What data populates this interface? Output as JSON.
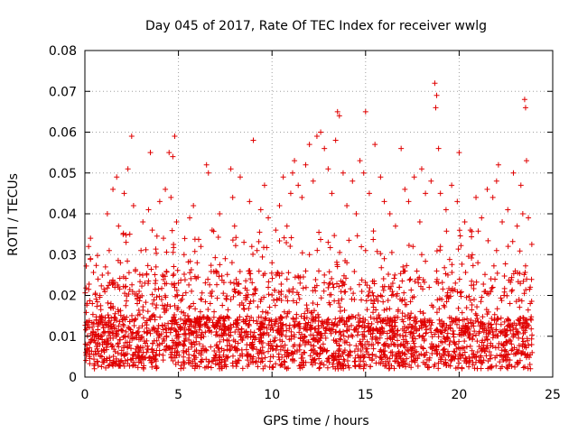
{
  "chart_data": {
    "type": "scatter",
    "title": "Day 045 of 2017, Rate Of TEC Index for receiver wwlg",
    "xlabel": "GPS time / hours",
    "ylabel": "ROTI / TECUs",
    "xlim": [
      0,
      25
    ],
    "ylim": [
      0,
      0.08
    ],
    "xticks": [
      0,
      5,
      10,
      15,
      20,
      25
    ],
    "xtick_labels": [
      "0",
      "5",
      "10",
      "15",
      "20",
      "25"
    ],
    "yticks": [
      0,
      0.01,
      0.02,
      0.03,
      0.04,
      0.05,
      0.06,
      0.07,
      0.08
    ],
    "ytick_labels": [
      "0",
      "0.01",
      "0.02",
      "0.03",
      "0.04",
      "0.05",
      "0.06",
      "0.07",
      "0.08"
    ],
    "grid": true,
    "marker": "+",
    "color": "#e00000",
    "series": [
      {
        "name": "ROTI",
        "points": [
          [
            0.1,
            0.012
          ],
          [
            0.2,
            0.032
          ],
          [
            0.3,
            0.029
          ],
          [
            0.4,
            0.018
          ],
          [
            0.5,
            0.009
          ],
          [
            0.7,
            0.024
          ],
          [
            0.9,
            0.015
          ],
          [
            1.0,
            0.011
          ],
          [
            1.1,
            0.027
          ],
          [
            1.2,
            0.04
          ],
          [
            1.3,
            0.031
          ],
          [
            1.5,
            0.046
          ],
          [
            1.6,
            0.022
          ],
          [
            1.7,
            0.049
          ],
          [
            1.8,
            0.037
          ],
          [
            1.9,
            0.028
          ],
          [
            2.0,
            0.014
          ],
          [
            2.1,
            0.045
          ],
          [
            2.2,
            0.033
          ],
          [
            2.3,
            0.051
          ],
          [
            2.4,
            0.035
          ],
          [
            2.5,
            0.059
          ],
          [
            2.6,
            0.042
          ],
          [
            2.7,
            0.026
          ],
          [
            2.8,
            0.018
          ],
          [
            3.0,
            0.031
          ],
          [
            3.1,
            0.038
          ],
          [
            3.2,
            0.023
          ],
          [
            3.4,
            0.041
          ],
          [
            3.5,
            0.055
          ],
          [
            3.6,
            0.036
          ],
          [
            3.8,
            0.027
          ],
          [
            4.0,
            0.043
          ],
          [
            4.2,
            0.034
          ],
          [
            4.3,
            0.046
          ],
          [
            4.5,
            0.055
          ],
          [
            4.6,
            0.044
          ],
          [
            4.7,
            0.054
          ],
          [
            4.8,
            0.059
          ],
          [
            4.9,
            0.038
          ],
          [
            5.0,
            0.023
          ],
          [
            5.3,
            0.03
          ],
          [
            5.6,
            0.039
          ],
          [
            5.8,
            0.042
          ],
          [
            6.0,
            0.028
          ],
          [
            6.2,
            0.032
          ],
          [
            6.5,
            0.052
          ],
          [
            6.6,
            0.05
          ],
          [
            6.8,
            0.036
          ],
          [
            7.0,
            0.026
          ],
          [
            7.2,
            0.04
          ],
          [
            7.5,
            0.029
          ],
          [
            7.8,
            0.051
          ],
          [
            7.9,
            0.044
          ],
          [
            8.0,
            0.037
          ],
          [
            8.3,
            0.049
          ],
          [
            8.5,
            0.033
          ],
          [
            8.8,
            0.043
          ],
          [
            9.0,
            0.058
          ],
          [
            9.2,
            0.031
          ],
          [
            9.4,
            0.041
          ],
          [
            9.6,
            0.047
          ],
          [
            9.8,
            0.039
          ],
          [
            10.0,
            0.028
          ],
          [
            10.2,
            0.036
          ],
          [
            10.4,
            0.042
          ],
          [
            10.6,
            0.049
          ],
          [
            10.8,
            0.037
          ],
          [
            11.0,
            0.045
          ],
          [
            11.1,
            0.05
          ],
          [
            11.2,
            0.053
          ],
          [
            11.4,
            0.047
          ],
          [
            11.6,
            0.044
          ],
          [
            11.8,
            0.052
          ],
          [
            12.0,
            0.057
          ],
          [
            12.2,
            0.048
          ],
          [
            12.4,
            0.059
          ],
          [
            12.6,
            0.06
          ],
          [
            12.8,
            0.056
          ],
          [
            13.0,
            0.051
          ],
          [
            13.2,
            0.045
          ],
          [
            13.4,
            0.058
          ],
          [
            13.5,
            0.065
          ],
          [
            13.6,
            0.064
          ],
          [
            13.8,
            0.05
          ],
          [
            14.0,
            0.042
          ],
          [
            14.3,
            0.048
          ],
          [
            14.5,
            0.04
          ],
          [
            14.7,
            0.053
          ],
          [
            14.9,
            0.05
          ],
          [
            15.0,
            0.065
          ],
          [
            15.2,
            0.045
          ],
          [
            15.5,
            0.057
          ],
          [
            15.8,
            0.049
          ],
          [
            16.0,
            0.043
          ],
          [
            16.3,
            0.04
          ],
          [
            16.6,
            0.037
          ],
          [
            16.9,
            0.056
          ],
          [
            17.1,
            0.046
          ],
          [
            17.3,
            0.043
          ],
          [
            17.6,
            0.049
          ],
          [
            17.9,
            0.038
          ],
          [
            18.0,
            0.051
          ],
          [
            18.2,
            0.045
          ],
          [
            18.5,
            0.048
          ],
          [
            18.7,
            0.072
          ],
          [
            18.8,
            0.069
          ],
          [
            18.75,
            0.066
          ],
          [
            18.9,
            0.056
          ],
          [
            19.0,
            0.045
          ],
          [
            19.3,
            0.041
          ],
          [
            19.6,
            0.047
          ],
          [
            19.9,
            0.043
          ],
          [
            20.0,
            0.055
          ],
          [
            20.3,
            0.038
          ],
          [
            20.6,
            0.036
          ],
          [
            20.9,
            0.044
          ],
          [
            21.2,
            0.039
          ],
          [
            21.5,
            0.046
          ],
          [
            21.8,
            0.044
          ],
          [
            22.0,
            0.048
          ],
          [
            22.1,
            0.052
          ],
          [
            22.3,
            0.038
          ],
          [
            22.6,
            0.041
          ],
          [
            22.9,
            0.05
          ],
          [
            23.1,
            0.037
          ],
          [
            23.3,
            0.047
          ],
          [
            23.5,
            0.068
          ],
          [
            23.55,
            0.066
          ],
          [
            23.6,
            0.053
          ],
          [
            23.7,
            0.039
          ],
          [
            23.4,
            0.04
          ],
          [
            0.3,
            0.034
          ],
          [
            0.6,
            0.014
          ],
          [
            1.4,
            0.008
          ],
          [
            2.9,
            0.021
          ],
          [
            3.3,
            0.012
          ],
          [
            4.1,
            0.019
          ],
          [
            5.5,
            0.015
          ],
          [
            6.7,
            0.018
          ],
          [
            7.4,
            0.013
          ],
          [
            8.6,
            0.02
          ],
          [
            9.5,
            0.016
          ],
          [
            10.5,
            0.021
          ],
          [
            11.5,
            0.023
          ],
          [
            12.5,
            0.026
          ],
          [
            13.3,
            0.022
          ],
          [
            14.4,
            0.019
          ],
          [
            15.4,
            0.018
          ],
          [
            16.4,
            0.02
          ],
          [
            17.4,
            0.024
          ],
          [
            18.4,
            0.022
          ],
          [
            19.4,
            0.025
          ],
          [
            20.4,
            0.017
          ],
          [
            21.4,
            0.021
          ],
          [
            22.4,
            0.02
          ],
          [
            23.2,
            0.019
          ],
          [
            0.8,
            0.02
          ],
          [
            1.8,
            0.016
          ],
          [
            2.8,
            0.019
          ],
          [
            3.8,
            0.017
          ],
          [
            4.8,
            0.022
          ],
          [
            5.8,
            0.018
          ],
          [
            6.8,
            0.021
          ],
          [
            7.8,
            0.019
          ],
          [
            8.8,
            0.018
          ],
          [
            9.8,
            0.022
          ],
          [
            10.8,
            0.024
          ],
          [
            11.8,
            0.026
          ],
          [
            12.8,
            0.025
          ],
          [
            13.8,
            0.023
          ],
          [
            14.8,
            0.021
          ],
          [
            15.8,
            0.02
          ],
          [
            16.8,
            0.022
          ],
          [
            17.8,
            0.024
          ],
          [
            18.8,
            0.026
          ],
          [
            19.8,
            0.023
          ],
          [
            20.8,
            0.019
          ],
          [
            21.8,
            0.022
          ],
          [
            22.8,
            0.021
          ],
          [
            23.8,
            0.018
          ],
          [
            0.05,
            0.006
          ],
          [
            23.9,
            0.006
          ],
          [
            12.0,
            0.03
          ],
          [
            13.0,
            0.033
          ],
          [
            14.0,
            0.028
          ],
          [
            15.0,
            0.031
          ],
          [
            16.0,
            0.029
          ],
          [
            17.0,
            0.027
          ],
          [
            18.0,
            0.03
          ],
          [
            19.0,
            0.032
          ],
          [
            21.0,
            0.028
          ],
          [
            22.0,
            0.031
          ],
          [
            23.0,
            0.026
          ]
        ]
      }
    ],
    "dense_band": {
      "x_range": [
        0,
        23.9
      ],
      "y_range": [
        0.002,
        0.018
      ]
    }
  }
}
